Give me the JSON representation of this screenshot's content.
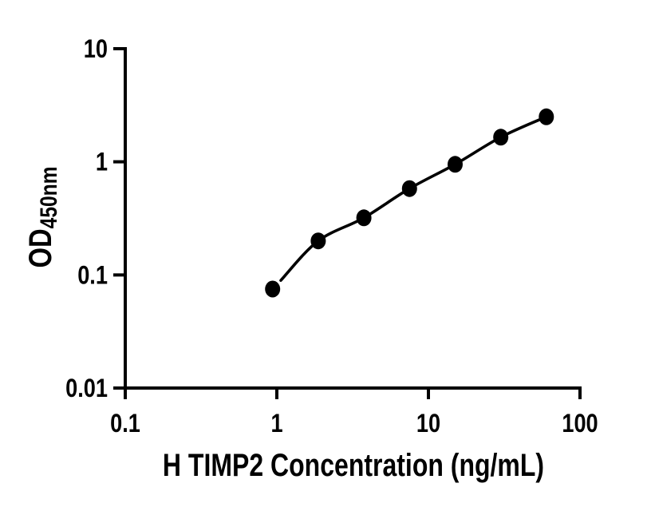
{
  "page": {
    "background": "#ffffff"
  },
  "chart_data": {
    "type": "scatter",
    "subtype": "elisa-standard-curve",
    "title": "",
    "xlabel": "H TIMP2 Concentration (ng/mL)",
    "ylabel_main": "OD",
    "ylabel_sub": "450nm",
    "x_scale": "log",
    "y_scale": "log",
    "xlim": [
      0.1,
      100
    ],
    "ylim": [
      0.01,
      10
    ],
    "grid": false,
    "legend": false,
    "ink_color": "#000000",
    "background_color": "#ffffff",
    "marker": {
      "shape": "filled-circle",
      "color": "#000000"
    },
    "x_ticks": [
      {
        "value": 0.1,
        "label": "0.1"
      },
      {
        "value": 1,
        "label": "1"
      },
      {
        "value": 10,
        "label": "10"
      },
      {
        "value": 100,
        "label": "100"
      }
    ],
    "y_ticks": [
      {
        "value": 10,
        "label": "10"
      },
      {
        "value": 1,
        "label": "1"
      },
      {
        "value": 0.1,
        "label": "0.1"
      },
      {
        "value": 0.01,
        "label": "0.01"
      }
    ],
    "series": [
      {
        "name": "standard-curve",
        "line": "smooth-fit",
        "points": [
          {
            "x": 0.9375,
            "y": 0.075
          },
          {
            "x": 1.875,
            "y": 0.2
          },
          {
            "x": 3.75,
            "y": 0.32
          },
          {
            "x": 7.5,
            "y": 0.58
          },
          {
            "x": 15,
            "y": 0.95
          },
          {
            "x": 30,
            "y": 1.65
          },
          {
            "x": 60,
            "y": 2.5
          }
        ]
      }
    ]
  }
}
